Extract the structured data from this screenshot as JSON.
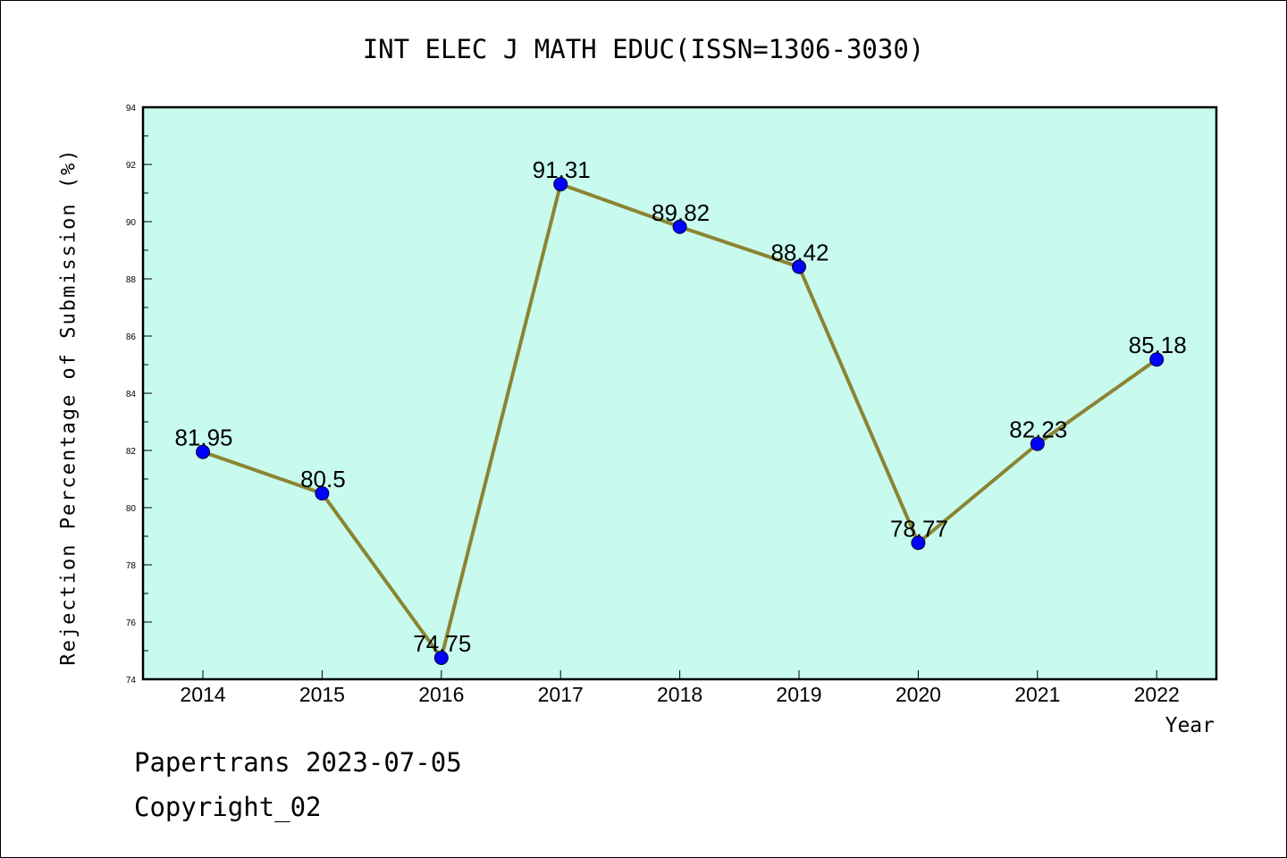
{
  "chart_data": {
    "type": "line",
    "title": "INT ELEC J MATH EDUC(ISSN=1306-3030)",
    "xlabel": "Year",
    "ylabel": "Rejection Percentage of Submission (%)",
    "categories": [
      "2014",
      "2015",
      "2016",
      "2017",
      "2018",
      "2019",
      "2020",
      "2021",
      "2022"
    ],
    "values": [
      81.95,
      80.5,
      74.75,
      91.31,
      89.82,
      88.42,
      78.77,
      82.23,
      85.18
    ],
    "data_labels": [
      "81.95",
      "80.5",
      "74.75",
      "91.31",
      "89.82",
      "88.42",
      "78.77",
      "82.23",
      "85.18"
    ],
    "ylim": [
      74,
      94
    ],
    "yticks": [
      74,
      76,
      78,
      80,
      82,
      84,
      86,
      88,
      90,
      92,
      94
    ],
    "grid": false,
    "colors": {
      "background": "#c8fbee",
      "line": "#8c8433",
      "marker": "#0000ff"
    }
  },
  "footer": {
    "line1": "Papertrans 2023-07-05",
    "line2": "Copyright_02"
  }
}
